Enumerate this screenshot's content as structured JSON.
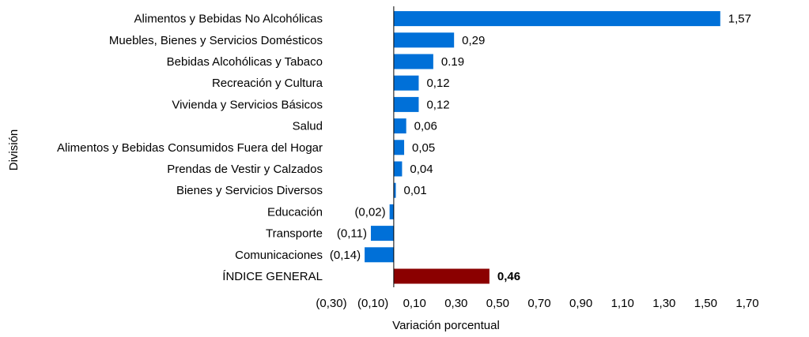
{
  "chart_data": {
    "type": "bar",
    "orientation": "horizontal",
    "title": "",
    "xlabel": "Variación porcentual",
    "ylabel": "División",
    "xlim": [
      -0.3,
      1.7
    ],
    "xticks": [
      -0.3,
      -0.1,
      0.1,
      0.3,
      0.5,
      0.7,
      0.9,
      1.1,
      1.3,
      1.5,
      1.7
    ],
    "xtick_labels": [
      "(0,30)",
      "(0,10)",
      "0,10",
      "0,30",
      "0,50",
      "0,70",
      "0,90",
      "1,10",
      "1,30",
      "1,50",
      "1,70"
    ],
    "grid": false,
    "legend": "none",
    "categories": [
      "Alimentos y Bebidas No Alcohólicas",
      "Muebles, Bienes y Servicios Domésticos",
      "Bebidas Alcohólicas y Tabaco",
      "Recreación y Cultura",
      "Vivienda y Servicios Básicos",
      "Salud",
      "Alimentos y Bebidas Consumidos Fuera del Hogar",
      "Prendas de Vestir y Calzados",
      "Bienes y Servicios Diversos",
      "Educación",
      "Transporte",
      "Comunicaciones",
      "ÍNDICE GENERAL"
    ],
    "values": [
      1.57,
      0.29,
      0.19,
      0.12,
      0.12,
      0.06,
      0.05,
      0.04,
      0.01,
      -0.02,
      -0.11,
      -0.14,
      0.46
    ],
    "value_labels": [
      "1,57",
      "0,29",
      "0.19",
      "0,12",
      "0,12",
      "0,06",
      "0,05",
      "0,04",
      "0,01",
      "(0,02)",
      "(0,11)",
      "(0,14)",
      "0,46"
    ],
    "bold_labels": [
      false,
      false,
      false,
      false,
      false,
      false,
      false,
      false,
      false,
      false,
      false,
      false,
      true
    ],
    "bar_colors": [
      "#0070d8",
      "#0070d8",
      "#0070d8",
      "#0070d8",
      "#0070d8",
      "#0070d8",
      "#0070d8",
      "#0070d8",
      "#0070d8",
      "#0070d8",
      "#0070d8",
      "#0070d8",
      "#8b0000"
    ]
  }
}
